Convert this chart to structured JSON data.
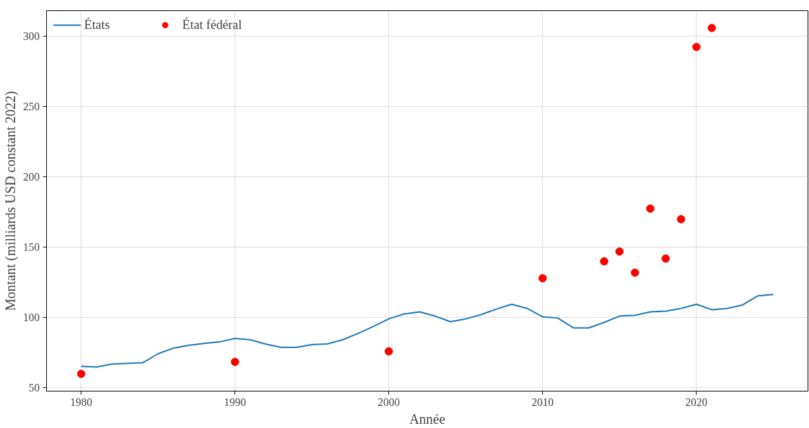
{
  "chart_data": {
    "type": "line",
    "xlabel": "Année",
    "ylabel": "Montant (milliards USD constant 2022)",
    "xlim": [
      1977.75,
      2027.25
    ],
    "xticks": [
      1980,
      1990,
      2000,
      2010,
      2020
    ],
    "ylim": [
      47.7,
      318.3
    ],
    "yticks": [
      50,
      100,
      150,
      200,
      250,
      300
    ],
    "grid": true,
    "legend": "top left",
    "series": [
      {
        "name": "États",
        "color": "#1f77b4",
        "x": [
          1980,
          1981,
          1982,
          1983,
          1984,
          1985,
          1986,
          1987,
          1988,
          1989,
          1990,
          1991,
          1992,
          1993,
          1994,
          1995,
          1996,
          1997,
          1998,
          1999,
          2000,
          2001,
          2002,
          2003,
          2004,
          2005,
          2006,
          2007,
          2008,
          2009,
          2010,
          2011,
          2012,
          2013,
          2014,
          2015,
          2016,
          2017,
          2018,
          2019,
          2020,
          2021,
          2022,
          2023,
          2024,
          2025
        ],
        "values": [
          65.4,
          64.9,
          66.9,
          67.4,
          67.9,
          74.3,
          78.3,
          80.3,
          81.7,
          82.7,
          85.2,
          84.2,
          81.2,
          78.8,
          78.8,
          80.8,
          81.3,
          84.2,
          88.7,
          93.7,
          99.1,
          102.6,
          104.1,
          101.1,
          97.1,
          99.1,
          102.1,
          106.1,
          109.5,
          106.5,
          100.6,
          99.6,
          92.7,
          92.7,
          96.6,
          101.1,
          101.6,
          104.1,
          104.6,
          106.5,
          109.5,
          105.6,
          106.5,
          109,
          115.5,
          116.5
        ]
      },
      {
        "name": "État fédéral",
        "type": "scatter",
        "marker": "circle",
        "color": "#ff0000",
        "x": [
          1980,
          1990,
          2000,
          2010,
          2014,
          2015,
          2016,
          2017,
          2018,
          2019,
          2020,
          2021
        ],
        "values": [
          60,
          68.5,
          76,
          128,
          140,
          147,
          132,
          177.5,
          142,
          170,
          292.5,
          306
        ]
      }
    ]
  }
}
